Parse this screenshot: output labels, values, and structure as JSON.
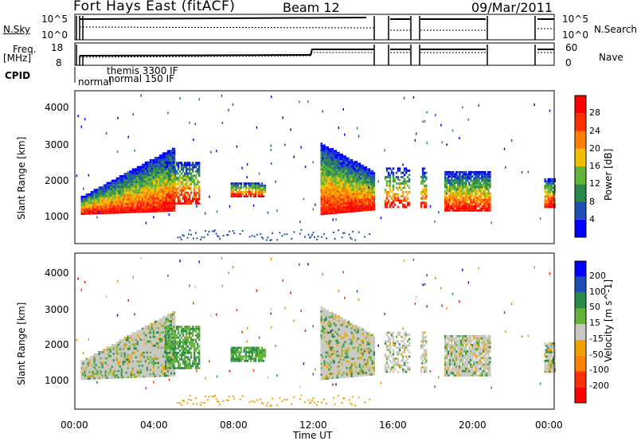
{
  "header": {
    "title": "Fort Hays East (fitACF)",
    "beam": "Beam 12",
    "date": "09/Mar/2011"
  },
  "panels": {
    "nsky_label": "N.Sky",
    "nsearch_label": "N.Search",
    "nsky_ticks": [
      "10^5",
      "10^0"
    ],
    "nsearch_ticks": [
      "10^5",
      "10^0"
    ],
    "freq_label_1": "Freq.",
    "freq_label_2": "[MHz]",
    "freq_ticks": [
      "18",
      "8"
    ],
    "nave_label": "Nave",
    "nave_ticks": [
      "60",
      "0"
    ],
    "cpid_label": "CPID",
    "cpid_names": [
      "normal",
      "themis 3300 IF",
      "normal 150 IF"
    ]
  },
  "colors": {
    "frame": "#000000",
    "power_scale": [
      "#0000ff",
      "#1f4fb4",
      "#2a8a4a",
      "#63b33a",
      "#f0c000",
      "#ff8000",
      "#ff3000",
      "#ff0000"
    ],
    "velocity_scale": [
      "#ff0000",
      "#ff3000",
      "#ff8000",
      "#f0a000",
      "#c8c8c0",
      "#63b33a",
      "#2a8a4a",
      "#1f4fb4",
      "#0000ff"
    ]
  },
  "chart_data": [
    {
      "type": "heatmap",
      "name_panel": "power",
      "ylabel": "Slant Range [km]",
      "xlabel": "Time UT",
      "x_ticks": [
        "00:00",
        "04:00",
        "08:00",
        "12:00",
        "16:00",
        "20:00",
        "00:00"
      ],
      "y_ticks": [
        "1000",
        "2000",
        "3000",
        "4000"
      ],
      "ylim": [
        200,
        4500
      ],
      "colorbar_label": "Power [dB]",
      "colorbar_ticks": [
        "4",
        "8",
        "12",
        "16",
        "20",
        "24",
        "28"
      ]
    },
    {
      "type": "heatmap",
      "name_panel": "velocity",
      "ylabel": "Slant Range [km]",
      "xlabel": "Time UT",
      "x_ticks": [
        "00:00",
        "04:00",
        "08:00",
        "12:00",
        "16:00",
        "20:00",
        "00:00"
      ],
      "y_ticks": [
        "1000",
        "2000",
        "3000",
        "4000"
      ],
      "ylim": [
        200,
        4500
      ],
      "colorbar_label": "Velocity [m s^-1]",
      "colorbar_ticks": [
        "200",
        "100",
        "50",
        "15",
        "-15",
        "-50",
        "-100",
        "-200"
      ]
    }
  ]
}
